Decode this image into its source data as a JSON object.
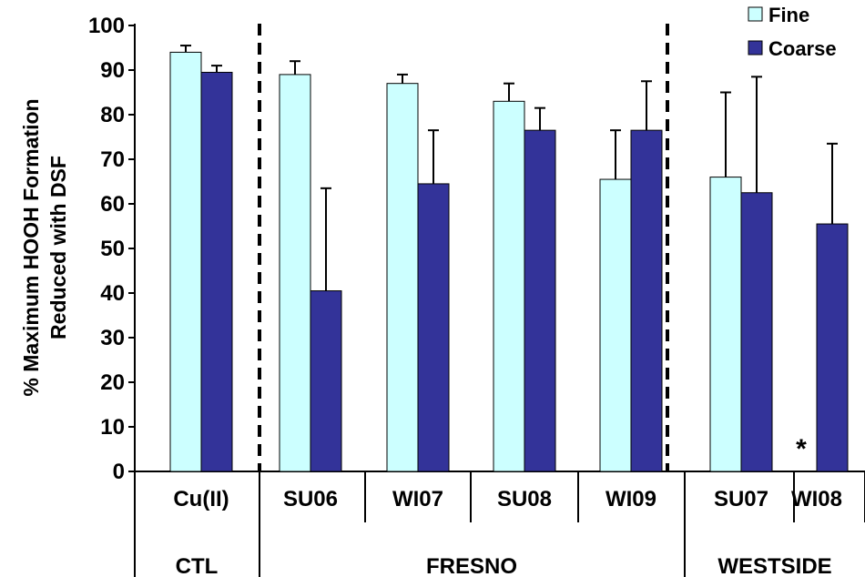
{
  "chart_data": {
    "type": "bar",
    "ylabel_lines": [
      "% Maximum HOOH Formation",
      "Reduced with DSF"
    ],
    "ylim": [
      0,
      100
    ],
    "yticks": [
      "0",
      "10",
      "20",
      "30",
      "40",
      "50",
      "60",
      "70",
      "80",
      "90",
      "100"
    ],
    "categories": [
      "Cu(II)",
      "SU06",
      "WI07",
      "SU08",
      "WI09",
      "SU07",
      "WI08"
    ],
    "groups": [
      {
        "label": "CTL",
        "categories": [
          "Cu(II)"
        ]
      },
      {
        "label": "FRESNO",
        "categories": [
          "SU06",
          "WI07",
          "SU08",
          "WI09"
        ]
      },
      {
        "label": "WESTSIDE",
        "categories": [
          "SU07",
          "WI08"
        ]
      }
    ],
    "series": [
      {
        "name": "Fine",
        "color": "#ccffff",
        "values": [
          94,
          89,
          87,
          83,
          65.5,
          66,
          null
        ],
        "errors": [
          1.5,
          3,
          2,
          4,
          11,
          19,
          null
        ]
      },
      {
        "name": "Coarse",
        "color": "#333399",
        "values": [
          89.5,
          40.5,
          64.5,
          76.5,
          76.5,
          62.5,
          55.5
        ],
        "errors": [
          1.5,
          23,
          12,
          5,
          11,
          26,
          18
        ]
      }
    ],
    "annotation": "*",
    "legend_position": "top-right",
    "grid": false
  }
}
